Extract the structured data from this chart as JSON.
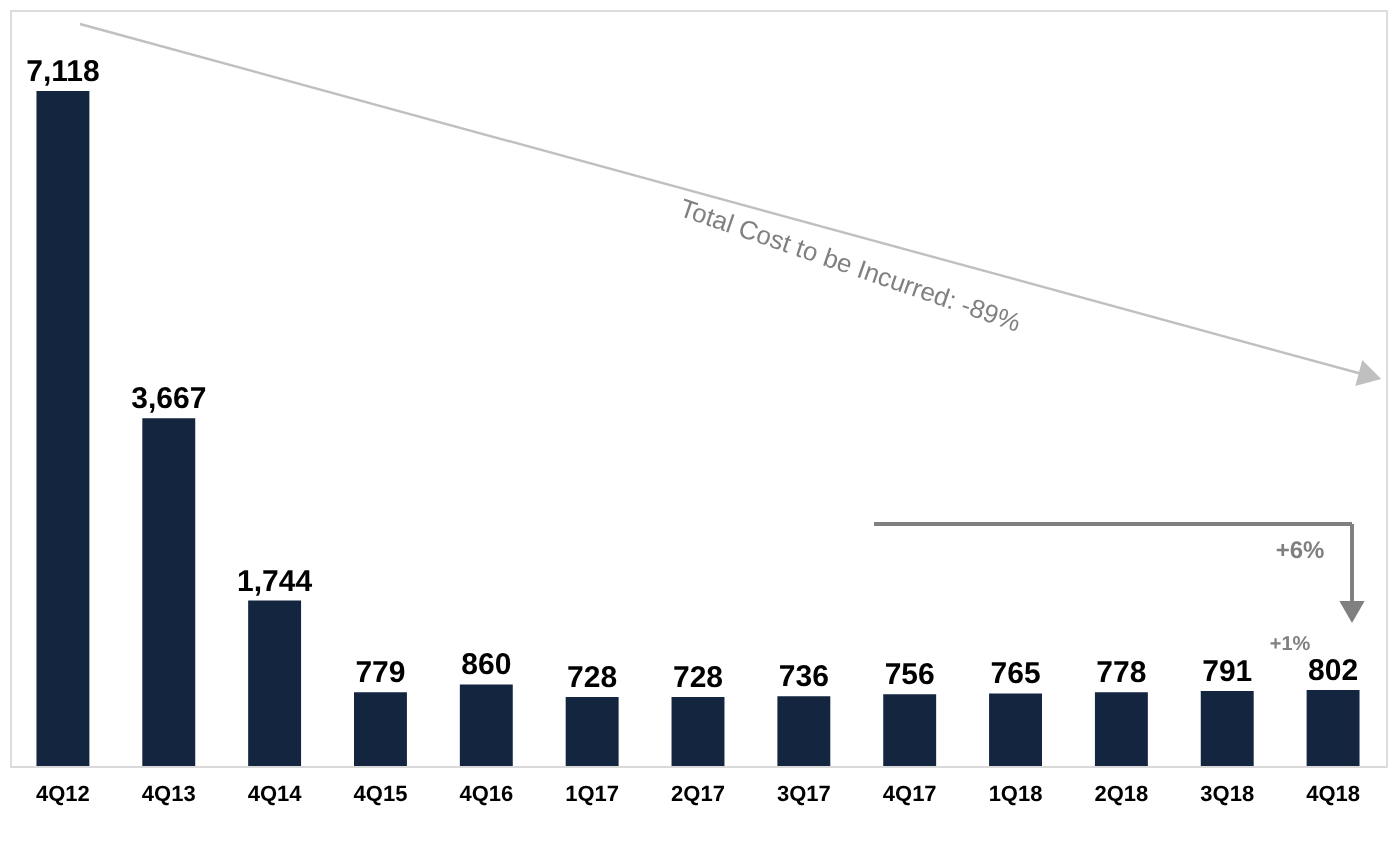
{
  "chart_data": {
    "type": "bar",
    "color": "#13253f",
    "value_labels": [
      "7,118",
      "3,667",
      "1,744",
      "779",
      "860",
      "728",
      "728",
      "736",
      "756",
      "765",
      "778",
      "791",
      "802"
    ],
    "categories": [
      "4Q12",
      "4Q13",
      "4Q14",
      "4Q15",
      "4Q16",
      "1Q17",
      "2Q17",
      "3Q17",
      "4Q17",
      "1Q18",
      "2Q18",
      "3Q18",
      "4Q18"
    ],
    "values": [
      7118,
      3667,
      1744,
      779,
      860,
      728,
      728,
      736,
      756,
      765,
      778,
      791,
      802
    ],
    "annotations": [
      "Total Cost to be Incurred: -89%",
      "+6%",
      "+1%"
    ]
  }
}
